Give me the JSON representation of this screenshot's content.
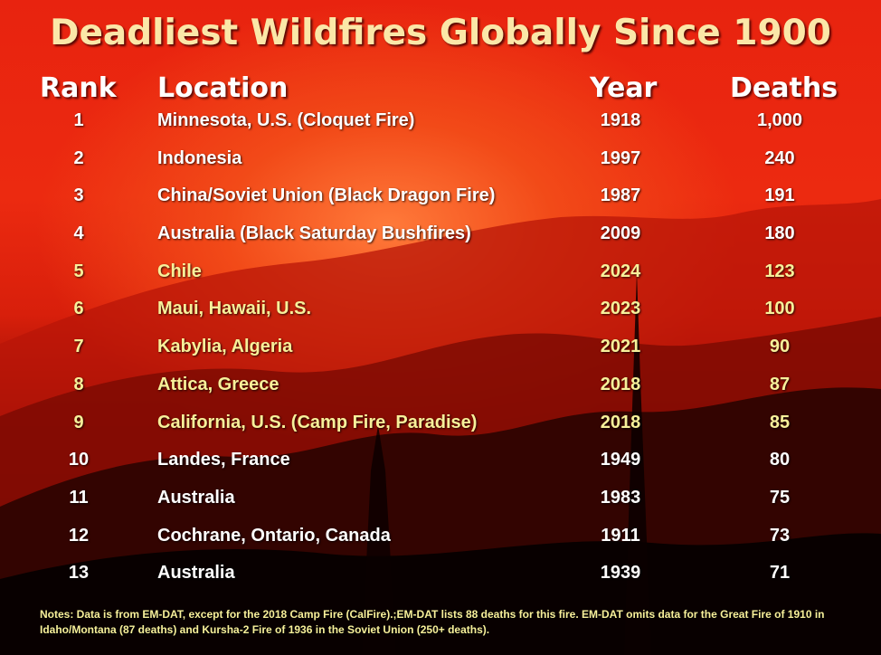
{
  "title": "Deadliest Wildfires Globally Since 1900",
  "headers": {
    "rank": "Rank",
    "location": "Location",
    "year": "Year",
    "deaths": "Deaths"
  },
  "rows": [
    {
      "rank": "1",
      "location": "Minnesota, U.S. (Cloquet Fire)",
      "year": "1918",
      "deaths": "1,000",
      "highlight": false
    },
    {
      "rank": "2",
      "location": "Indonesia",
      "year": "1997",
      "deaths": "240",
      "highlight": false
    },
    {
      "rank": "3",
      "location": "China/Soviet Union (Black Dragon Fire)",
      "year": "1987",
      "deaths": "191",
      "highlight": false
    },
    {
      "rank": "4",
      "location": "Australia (Black Saturday Bushfires)",
      "year": "2009",
      "deaths": "180",
      "highlight": false
    },
    {
      "rank": "5",
      "location": "Chile",
      "year": "2024",
      "deaths": "123",
      "highlight": true
    },
    {
      "rank": "6",
      "location": "Maui, Hawaii, U.S.",
      "year": "2023",
      "deaths": "100",
      "highlight": true
    },
    {
      "rank": "7",
      "location": "Kabylia, Algeria",
      "year": "2021",
      "deaths": "90",
      "highlight": true
    },
    {
      "rank": "8",
      "location": "Attica, Greece",
      "year": "2018",
      "deaths": "87",
      "highlight": true
    },
    {
      "rank": "9",
      "location": "California, U.S. (Camp Fire, Paradise)",
      "year": "2018",
      "deaths": "85",
      "highlight": true
    },
    {
      "rank": "10",
      "location": "Landes, France",
      "year": "1949",
      "deaths": "80",
      "highlight": false
    },
    {
      "rank": "11",
      "location": "Australia",
      "year": "1983",
      "deaths": "75",
      "highlight": false
    },
    {
      "rank": "12",
      "location": "Cochrane, Ontario, Canada",
      "year": "1911",
      "deaths": "73",
      "highlight": false
    },
    {
      "rank": "13",
      "location": "Australia",
      "year": "1939",
      "deaths": "71",
      "highlight": false
    }
  ],
  "notes": "Notes: Data is from EM-DAT, except for the 2018 Camp Fire (CalFire).;EM-DAT lists 88 deaths for this fire. EM-DAT omits data for the Great Fire of 1910 in Idaho/Montana (87 deaths) and Kursha-2 Fire of 1936 in the Soviet Union (250+ deaths).",
  "colors": {
    "title": "#fbe7a8",
    "header": "#ffffff",
    "normal_row": "#ffffff",
    "highlight_row": "#f7f09a",
    "notes": "#f7f09a"
  }
}
